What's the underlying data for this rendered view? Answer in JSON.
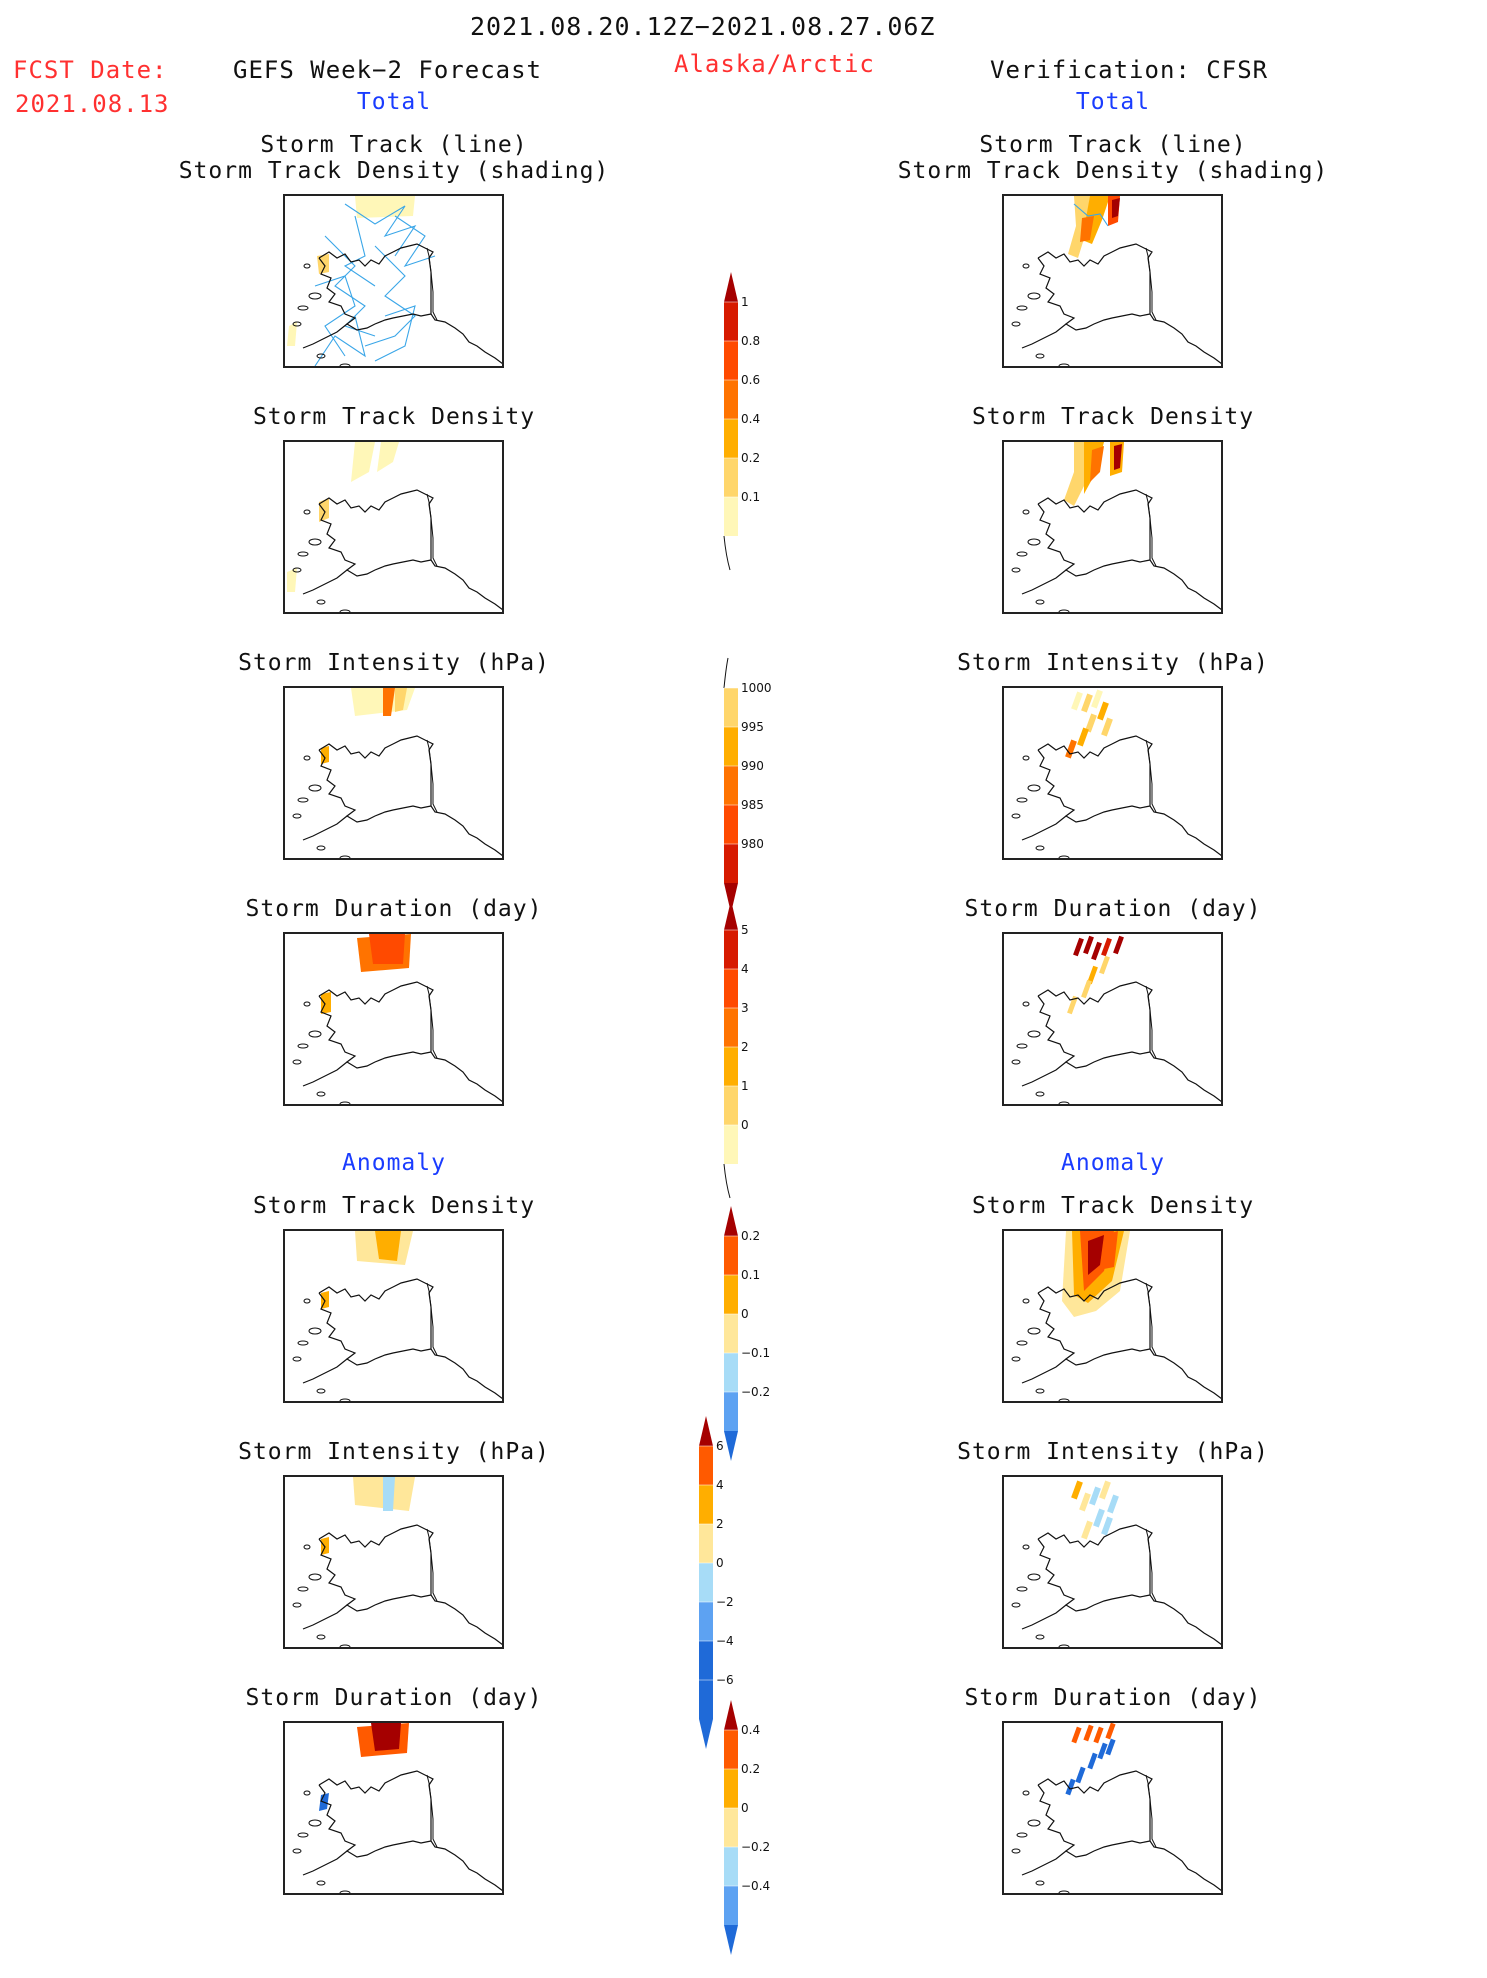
{
  "header": {
    "period": "2021.08.20.12Z−2021.08.27.06Z",
    "region": "Alaska/Arctic",
    "fcst_label": "FCST Date:",
    "fcst_date": "2021.08.13",
    "left_title": "GEFS Week−2 Forecast",
    "right_title": "Verification: CFSR",
    "total_label": "Total",
    "anomaly_label": "Anomaly"
  },
  "panels": {
    "track_line_1": "Storm Track (line)",
    "track_line_2": "Storm Track Density (shading)",
    "density": "Storm Track Density",
    "intensity": "Storm Intensity (hPa)",
    "duration": "Storm Duration (day)"
  },
  "colors": {
    "header_red": "#ff3030",
    "header_blue": "#1a3cff",
    "track_line": "#3aa6e8",
    "warm_scale": [
      "#fff7b8",
      "#ffd66b",
      "#ffae00",
      "#ff7300",
      "#ff4a00",
      "#d71a00",
      "#a50000"
    ],
    "diverging_scale": [
      "#1f6ad8",
      "#5da2f2",
      "#a7dcf7",
      "#ffe79a",
      "#ffae00",
      "#ff5a00",
      "#a50000"
    ]
  },
  "chart_data": [
    {
      "type": "colorbar",
      "name": "total-density",
      "ticks": [
        "1",
        "0.8",
        "0.6",
        "0.4",
        "0.2",
        "0.1"
      ]
    },
    {
      "type": "colorbar",
      "name": "total-intensity",
      "ticks": [
        "1000",
        "995",
        "990",
        "985",
        "980"
      ]
    },
    {
      "type": "colorbar",
      "name": "total-duration",
      "ticks": [
        "5",
        "4",
        "3",
        "2",
        "1",
        "0"
      ]
    },
    {
      "type": "colorbar",
      "name": "anomaly-density",
      "ticks": [
        "0.2",
        "0.1",
        "0",
        "−0.1",
        "−0.2"
      ]
    },
    {
      "type": "colorbar",
      "name": "anomaly-intensity",
      "ticks": [
        "6",
        "4",
        "2",
        "0",
        "−2",
        "−4",
        "−6"
      ]
    },
    {
      "type": "colorbar",
      "name": "anomaly-duration",
      "ticks": [
        "0.4",
        "0.2",
        "0",
        "−0.2",
        "−0.4"
      ]
    }
  ]
}
